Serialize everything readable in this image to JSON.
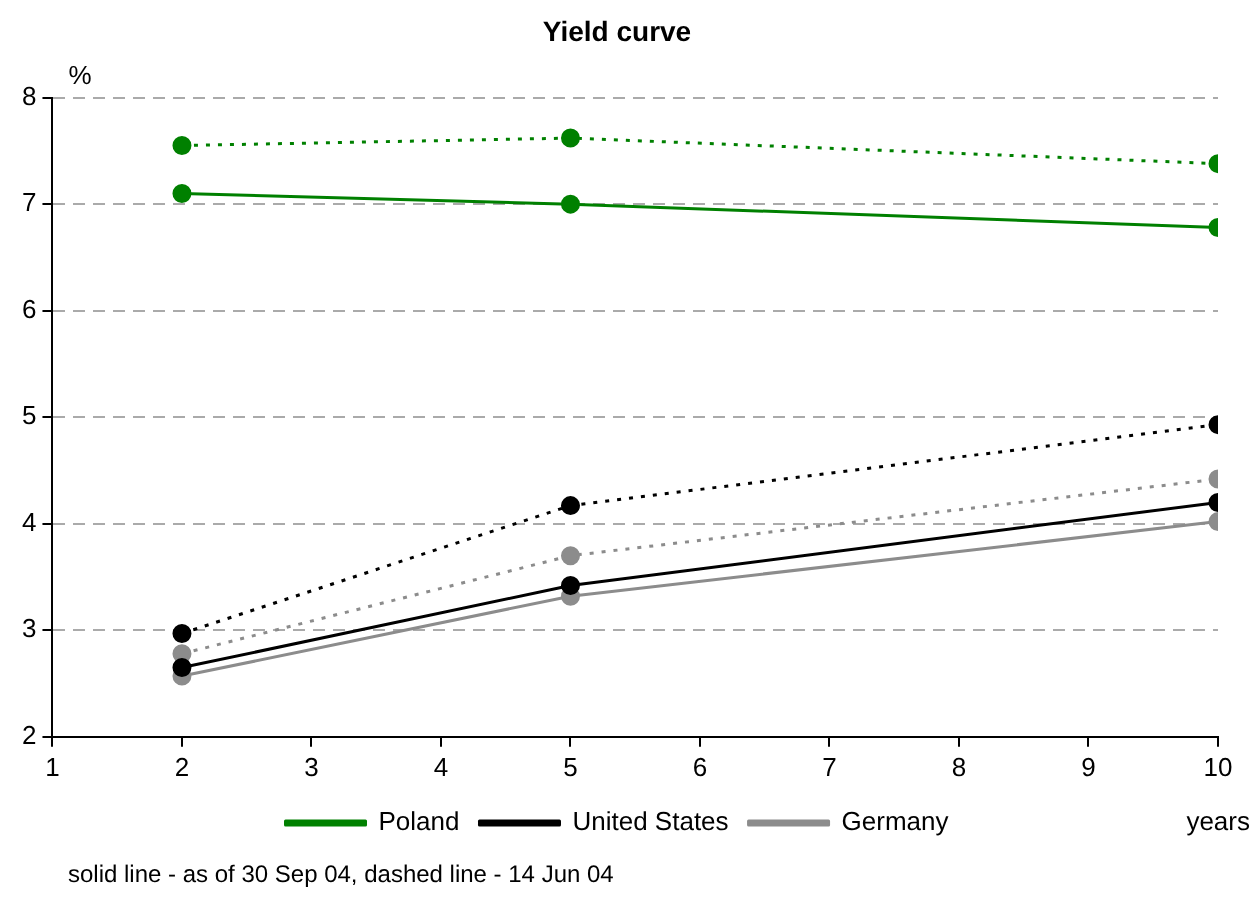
{
  "chart_data": {
    "type": "line",
    "title": "Yield curve",
    "xlabel": "years",
    "ylabel": "%",
    "x": [
      2,
      5,
      10
    ],
    "xlim": [
      1,
      10
    ],
    "xticks": [
      1,
      2,
      3,
      4,
      5,
      6,
      7,
      8,
      9,
      10
    ],
    "ylim": [
      2,
      8
    ],
    "yticks": [
      2,
      3,
      4,
      5,
      6,
      7,
      8
    ],
    "grid": "y",
    "legend": "bottom",
    "marker": "circle",
    "series": [
      {
        "name": "Poland",
        "color": "#008000",
        "values": [
          7.1,
          7.0,
          6.78
        ],
        "line_style": "solid"
      },
      {
        "color": "#008000",
        "values": [
          7.55,
          7.62,
          7.38
        ],
        "line_style": "dotted"
      },
      {
        "name": "United States",
        "color": "#000000",
        "values": [
          2.65,
          3.42,
          4.2
        ],
        "line_style": "solid"
      },
      {
        "color": "#000000",
        "values": [
          2.97,
          4.17,
          4.93
        ],
        "line_style": "dotted"
      },
      {
        "name": "Germany",
        "color": "#8c8c8c",
        "values": [
          2.57,
          3.32,
          4.02
        ],
        "line_style": "solid"
      },
      {
        "color": "#8c8c8c",
        "values": [
          2.78,
          3.7,
          4.42
        ],
        "line_style": "dotted"
      }
    ],
    "annotations": [
      "solid line - as of 30 Sep 04, dashed line - 14 Jun 04"
    ]
  }
}
